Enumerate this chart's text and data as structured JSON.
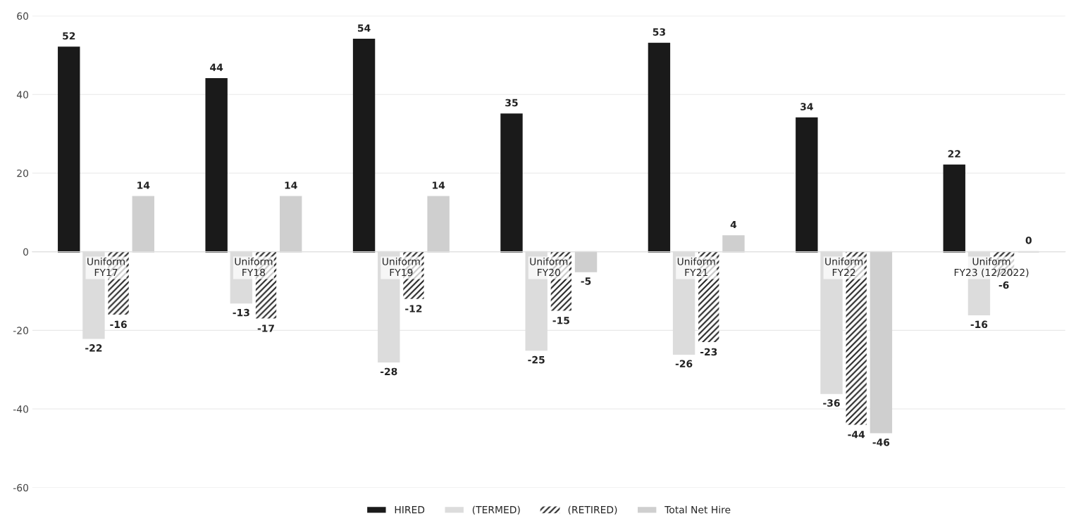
{
  "chart_data": {
    "type": "bar",
    "categories": [
      "Uniform\nFY17",
      "Uniform\nFY18",
      "Uniform\nFY19",
      "Uniform\nFY20",
      "Uniform\nFY21",
      "Uniform\nFY22",
      "Uniform\nFY23 (12/2022)"
    ],
    "series": [
      {
        "name": "HIRED",
        "color": "#1a1a1a",
        "values": [
          52,
          44,
          54,
          35,
          53,
          34,
          22
        ]
      },
      {
        "name": "(TERMED)",
        "color": "#dcdcdc",
        "values": [
          -22,
          -13,
          -28,
          -25,
          -26,
          -36,
          -16
        ]
      },
      {
        "name": "(RETIRED)",
        "color": "#262626",
        "values": [
          -16,
          -17,
          -12,
          -15,
          -23,
          -44,
          -6
        ]
      },
      {
        "name": "Total Net Hire",
        "color": "#cfcfcf",
        "values": [
          14,
          14,
          14,
          -5,
          4,
          -46,
          0
        ]
      }
    ],
    "ylim": [
      -60,
      60
    ],
    "yticks": [
      -60,
      -40,
      -20,
      0,
      20,
      40,
      60
    ],
    "grid": "y",
    "legend": "bottom",
    "data_labels": true
  }
}
